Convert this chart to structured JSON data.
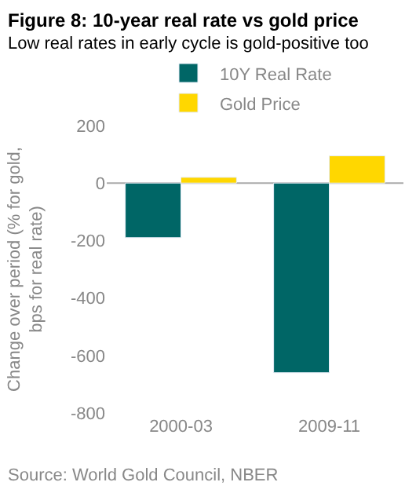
{
  "chart_data": {
    "type": "bar",
    "title": "Figure 8: 10-year real rate vs gold price",
    "subtitle": "Low real rates in early cycle is gold-positive too",
    "ylabel": "Change over period (% for gold, bps for real rate)",
    "categories": [
      "2000-03",
      "2009-11"
    ],
    "series": [
      {
        "name": "10Y Real Rate",
        "color": "#006666",
        "values": [
          -190,
          -660
        ]
      },
      {
        "name": "Gold Price",
        "color": "#ffd700",
        "values": [
          20,
          95
        ]
      }
    ],
    "ref_lines": [
      {
        "axis": "y",
        "value": 0,
        "color": "#aaaaaa"
      }
    ],
    "ylim": [
      -800,
      200
    ],
    "yticks": [
      -800,
      -600,
      -400,
      -200,
      0,
      200
    ],
    "grid": false,
    "legend": "top",
    "annotations": [
      "Source: World Gold Council, NBER"
    ]
  }
}
